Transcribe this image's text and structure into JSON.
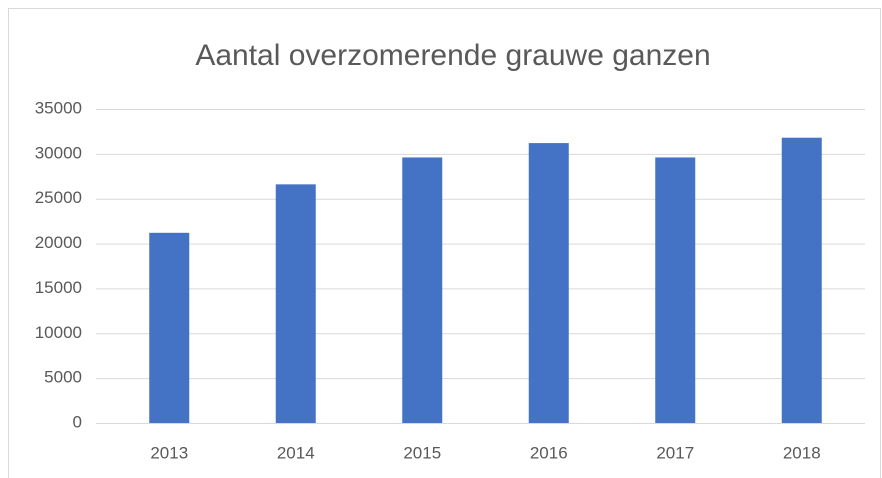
{
  "chart_data": {
    "type": "bar",
    "title": "Aantal overzomerende grauwe ganzen",
    "categories": [
      "2013",
      "2014",
      "2015",
      "2016",
      "2017",
      "2018"
    ],
    "values": [
      21200,
      26600,
      29600,
      31200,
      29600,
      31800
    ],
    "color": "#4472c4",
    "ylim": [
      0,
      35000
    ],
    "yticks": [
      0,
      5000,
      10000,
      15000,
      20000,
      25000,
      30000,
      35000
    ],
    "grid": true
  }
}
